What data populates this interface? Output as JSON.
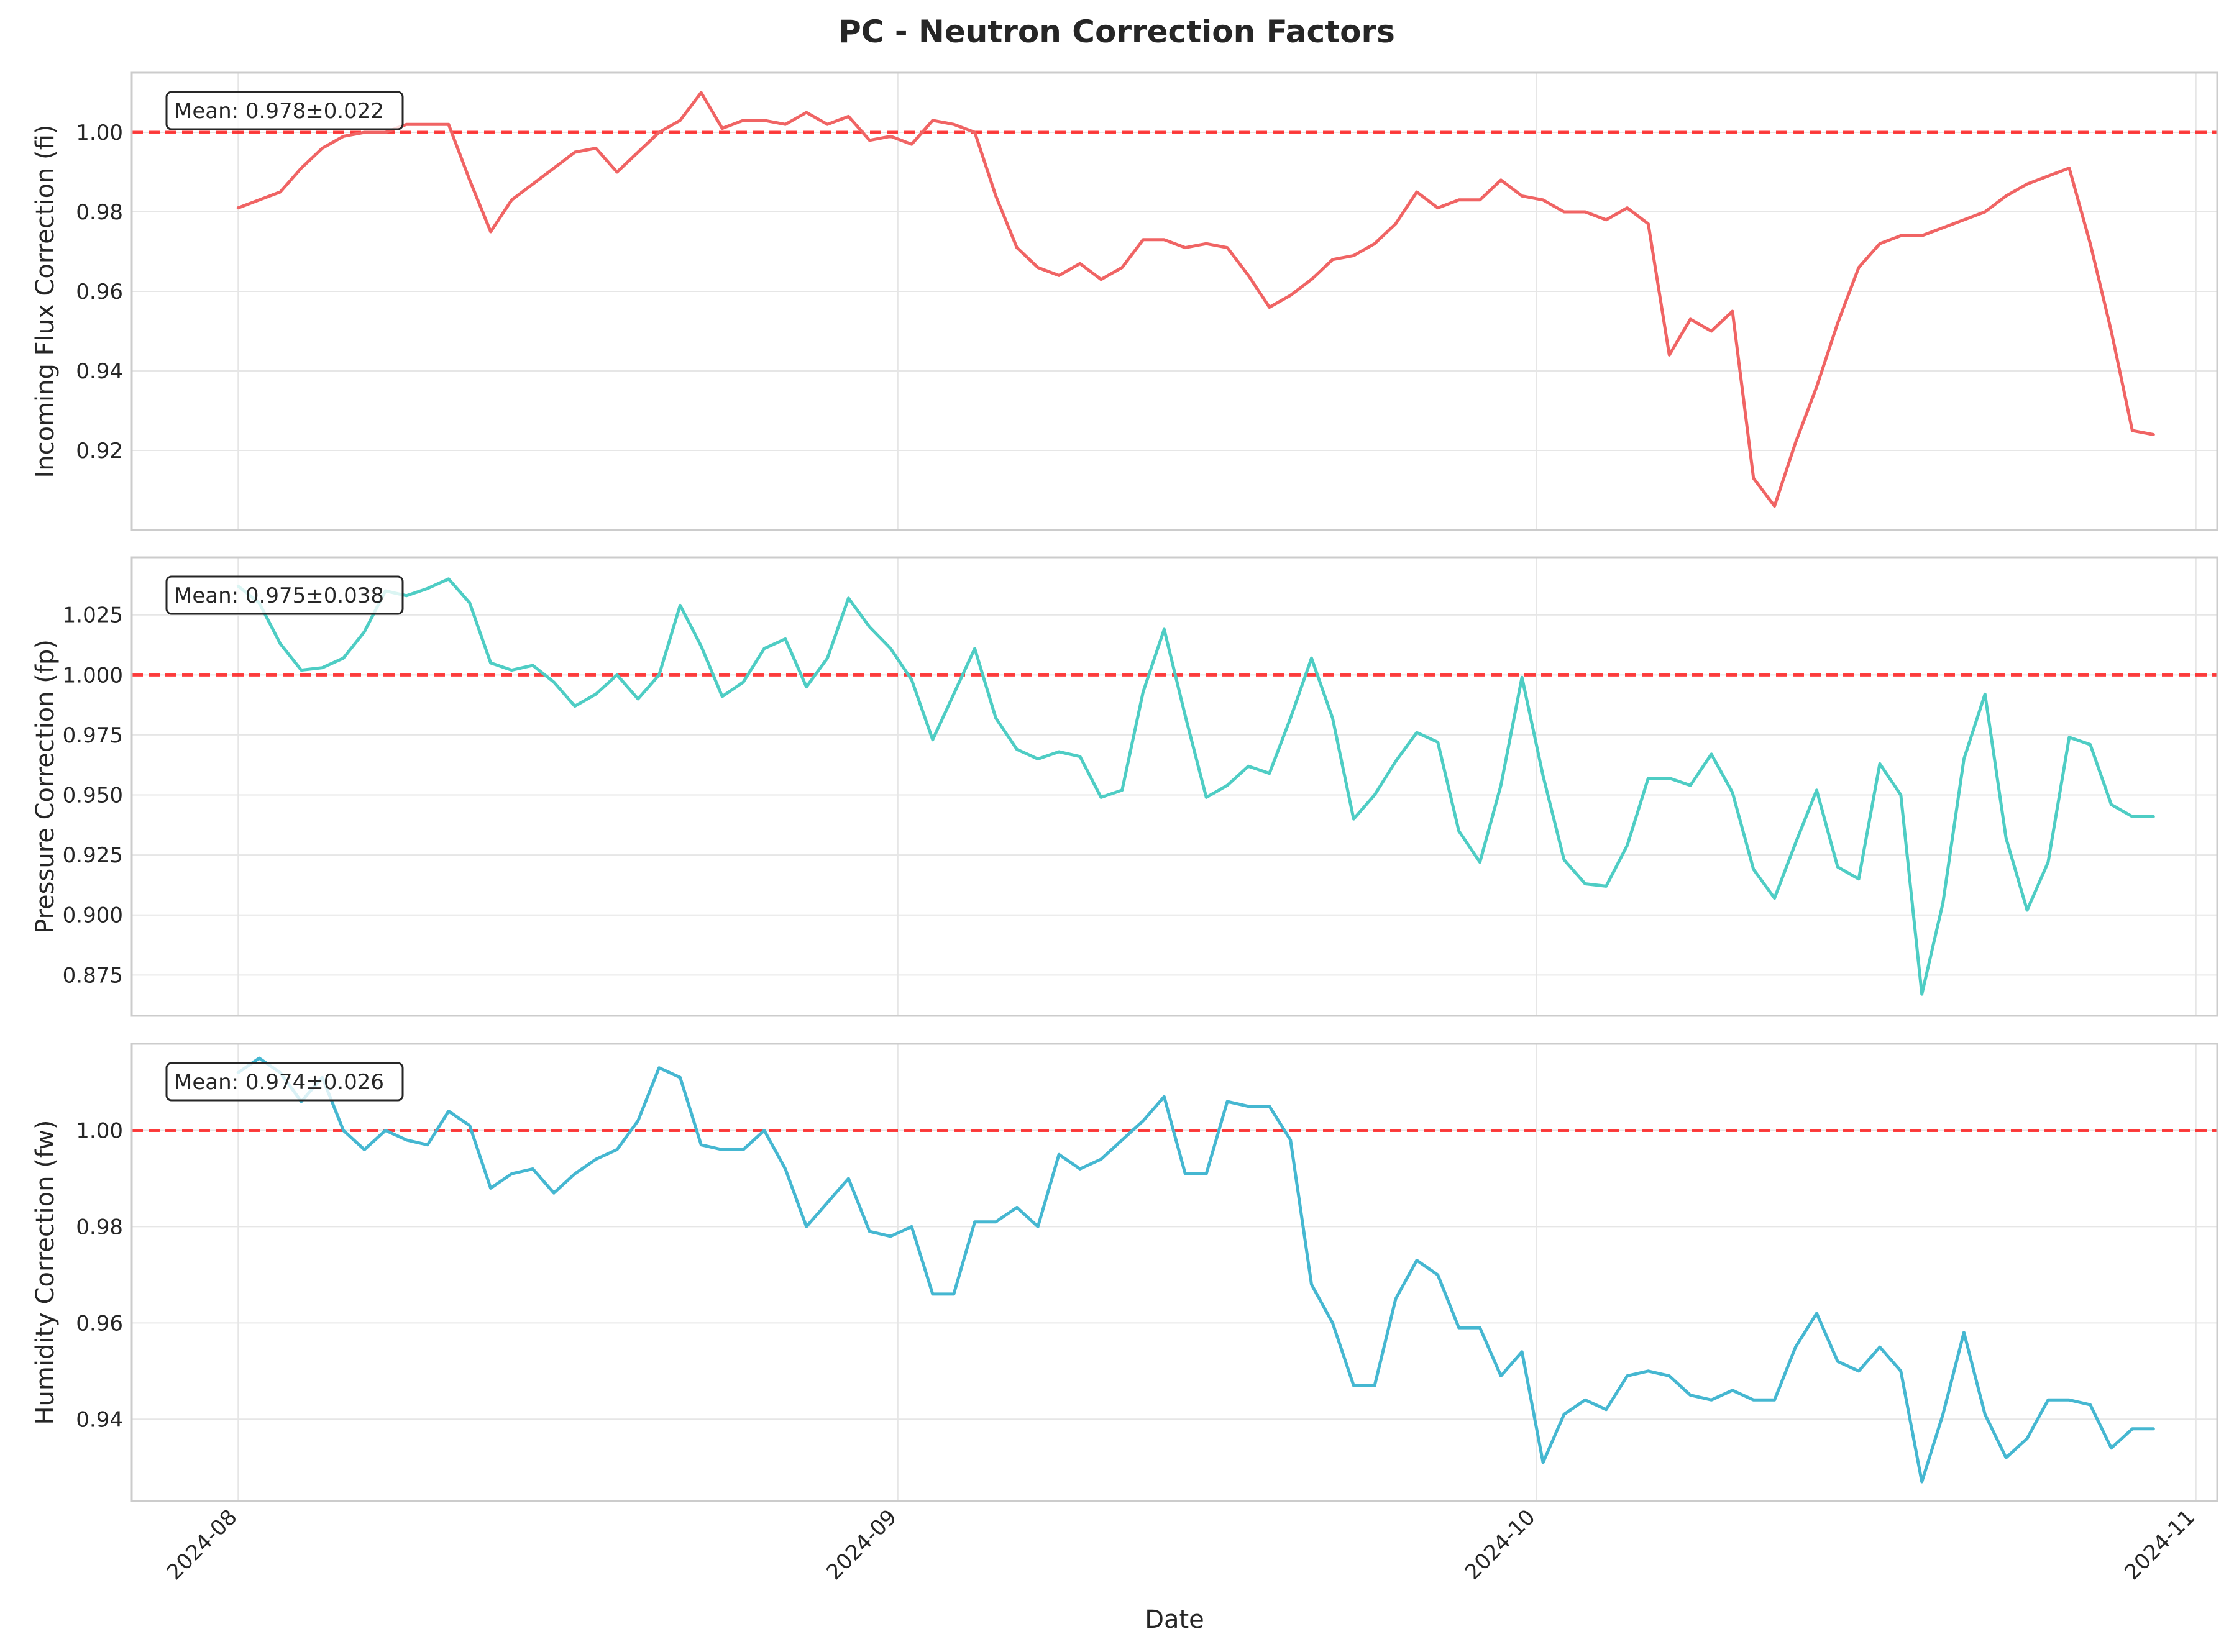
{
  "chart_data": {
    "type": "line",
    "title": "PC - Neutron Correction Factors",
    "xlabel": "Date",
    "xlim": [
      "2024-07-27",
      "2024-11-02"
    ],
    "x_ticks": [
      "2024-08",
      "2024-09",
      "2024-10",
      "2024-11"
    ],
    "x_tick_dates": [
      "2024-08-01",
      "2024-09-01",
      "2024-10-01",
      "2024-11-01"
    ],
    "date_start": "2024-08-01",
    "date_end": "2024-10-30",
    "reference_line": {
      "value": 1.0,
      "style": "dashed",
      "color": "#ff0000"
    },
    "grid": true,
    "panels": [
      {
        "ylabel": "Incoming Flux Correction (fi)",
        "mean_label": "Mean: 0.978±0.022",
        "color": "#f06464",
        "ylim": [
          0.9,
          1.015
        ],
        "yticks": [
          0.92,
          0.94,
          0.96,
          0.98,
          1.0
        ],
        "ytick_labels": [
          "0.92",
          "0.94",
          "0.96",
          "0.98",
          "1.00"
        ],
        "values": [
          0.981,
          0.983,
          0.985,
          0.991,
          0.996,
          0.999,
          1.0,
          1.0,
          1.002,
          1.002,
          1.002,
          0.988,
          0.975,
          0.983,
          0.987,
          0.991,
          0.995,
          0.996,
          0.99,
          0.995,
          1.0,
          1.003,
          1.01,
          1.001,
          1.003,
          1.003,
          1.002,
          1.005,
          1.002,
          1.004,
          0.998,
          0.999,
          0.997,
          1.003,
          1.002,
          1.0,
          0.984,
          0.971,
          0.966,
          0.964,
          0.967,
          0.963,
          0.966,
          0.973,
          0.973,
          0.971,
          0.972,
          0.971,
          0.964,
          0.956,
          0.959,
          0.963,
          0.968,
          0.969,
          0.972,
          0.977,
          0.985,
          0.981,
          0.983,
          0.983,
          0.988,
          0.984,
          0.983,
          0.98,
          0.98,
          0.978,
          0.981,
          0.977,
          0.944,
          0.953,
          0.95,
          0.955,
          0.913,
          0.906,
          0.922,
          0.936,
          0.952,
          0.966,
          0.972,
          0.974,
          0.974,
          0.976,
          0.978,
          0.98,
          0.984,
          0.987,
          0.989,
          0.991,
          0.972,
          0.95,
          0.925,
          0.924
        ]
      },
      {
        "ylabel": "Pressure Correction (fp)",
        "mean_label": "Mean: 0.975±0.038",
        "color": "#4ecdc4",
        "ylim": [
          0.858,
          1.049
        ],
        "yticks": [
          0.875,
          0.9,
          0.925,
          0.95,
          0.975,
          1.0,
          1.025
        ],
        "ytick_labels": [
          "0.875",
          "0.900",
          "0.925",
          "0.950",
          "0.975",
          "1.000",
          "1.025"
        ],
        "values": [
          1.037,
          1.03,
          1.013,
          1.002,
          1.003,
          1.007,
          1.018,
          1.035,
          1.033,
          1.036,
          1.04,
          1.03,
          1.005,
          1.002,
          1.004,
          0.997,
          0.987,
          0.992,
          1.0,
          0.99,
          1.0,
          1.029,
          1.012,
          0.991,
          0.997,
          1.011,
          1.015,
          0.995,
          1.007,
          1.032,
          1.02,
          1.011,
          0.998,
          0.973,
          0.992,
          1.011,
          0.982,
          0.969,
          0.965,
          0.968,
          0.966,
          0.949,
          0.952,
          0.993,
          1.019,
          0.983,
          0.949,
          0.954,
          0.962,
          0.959,
          0.982,
          1.007,
          0.982,
          0.94,
          0.95,
          0.964,
          0.976,
          0.972,
          0.935,
          0.922,
          0.954,
          0.999,
          0.958,
          0.923,
          0.913,
          0.912,
          0.929,
          0.957,
          0.957,
          0.954,
          0.967,
          0.951,
          0.919,
          0.907,
          0.93,
          0.952,
          0.92,
          0.915,
          0.963,
          0.95,
          0.867,
          0.905,
          0.965,
          0.992,
          0.932,
          0.902,
          0.922,
          0.974,
          0.971,
          0.946,
          0.941,
          0.941
        ]
      },
      {
        "ylabel": "Humidity Correction (fw)",
        "mean_label": "Mean: 0.974±0.026",
        "color": "#45b7d1",
        "ylim": [
          0.923,
          1.018
        ],
        "yticks": [
          0.94,
          0.96,
          0.98,
          1.0
        ],
        "ytick_labels": [
          "0.94",
          "0.96",
          "0.98",
          "1.00"
        ],
        "values": [
          1.012,
          1.015,
          1.012,
          1.006,
          1.011,
          1.0,
          0.996,
          1.0,
          0.998,
          0.997,
          1.004,
          1.001,
          0.988,
          0.991,
          0.992,
          0.987,
          0.991,
          0.994,
          0.996,
          1.002,
          1.013,
          1.011,
          0.997,
          0.996,
          0.996,
          1.0,
          0.992,
          0.98,
          0.985,
          0.99,
          0.979,
          0.978,
          0.98,
          0.966,
          0.966,
          0.981,
          0.981,
          0.984,
          0.98,
          0.995,
          0.992,
          0.994,
          0.998,
          1.002,
          1.007,
          0.991,
          0.991,
          1.006,
          1.005,
          1.005,
          0.998,
          0.968,
          0.96,
          0.947,
          0.947,
          0.965,
          0.973,
          0.97,
          0.959,
          0.959,
          0.949,
          0.954,
          0.931,
          0.941,
          0.944,
          0.942,
          0.949,
          0.95,
          0.949,
          0.945,
          0.944,
          0.946,
          0.944,
          0.944,
          0.955,
          0.962,
          0.952,
          0.95,
          0.955,
          0.95,
          0.927,
          0.941,
          0.958,
          0.941,
          0.932,
          0.936,
          0.944,
          0.944,
          0.943,
          0.934,
          0.938,
          0.938
        ]
      }
    ]
  }
}
